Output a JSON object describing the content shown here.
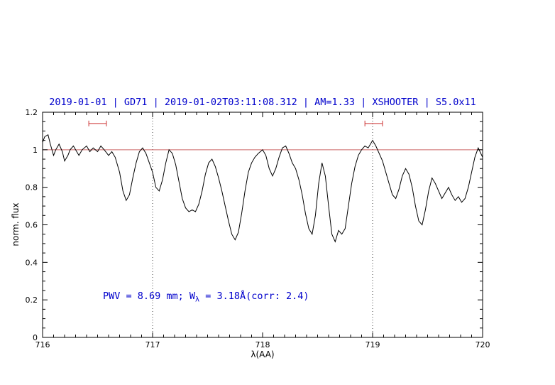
{
  "chart_data": {
    "type": "line",
    "title": "2019-01-01 | GD71 | 2019-01-02T03:11:08.312 | AM=1.33 | XSHOOTER | S5.0x11",
    "xlabel": "λ(AA)",
    "ylabel": "norm. flux",
    "xlim": [
      716,
      720
    ],
    "ylim": [
      0,
      1.2
    ],
    "x_ticks": [
      716,
      717,
      718,
      719,
      720
    ],
    "x_tick_labels": [
      "716",
      "717",
      "718",
      "719",
      "720"
    ],
    "y_ticks": [
      0,
      0.2,
      0.4,
      0.6,
      0.8,
      1,
      1.2
    ],
    "y_tick_labels": [
      "0",
      "0.2",
      "0.4",
      "0.6",
      "0.8",
      "1",
      "1.2"
    ],
    "x_minor_step": 0.1,
    "y_minor_step": 0.05,
    "grid": false,
    "legend": false,
    "colors": {
      "title_text": "#0000cc",
      "annotation_text": "#0000cc",
      "spectrum": "#000000",
      "reference_line": "#cc6666",
      "band_marker": "#cc3333",
      "dotted_guide": "#444444",
      "axis": "#000000"
    },
    "reference_line": {
      "y": 1.0,
      "color": "#cc6666"
    },
    "dotted_lines_x": [
      717,
      719
    ],
    "markers": [
      {
        "x1": 716.42,
        "x2": 716.58,
        "y": 1.14,
        "color": "#cc3333"
      },
      {
        "x1": 718.93,
        "x2": 719.09,
        "y": 1.14,
        "color": "#cc3333"
      }
    ],
    "annotation": {
      "prefix": "PWV = 8.69 mm; W",
      "sub": "λ",
      "suffix": " = 3.18Å(corr: 2.4)"
    },
    "series": [
      {
        "name": "normalized-spectrum",
        "color": "#000000",
        "points": [
          [
            716.0,
            1.04
          ],
          [
            716.02,
            1.07
          ],
          [
            716.05,
            1.08
          ],
          [
            716.07,
            1.03
          ],
          [
            716.1,
            0.97
          ],
          [
            716.12,
            1.0
          ],
          [
            716.15,
            1.03
          ],
          [
            716.18,
            0.99
          ],
          [
            716.2,
            0.94
          ],
          [
            716.23,
            0.97
          ],
          [
            716.25,
            1.0
          ],
          [
            716.28,
            1.02
          ],
          [
            716.3,
            1.0
          ],
          [
            716.33,
            0.97
          ],
          [
            716.36,
            1.0
          ],
          [
            716.4,
            1.02
          ],
          [
            716.43,
            0.99
          ],
          [
            716.46,
            1.01
          ],
          [
            716.5,
            0.99
          ],
          [
            716.53,
            1.02
          ],
          [
            716.56,
            1.0
          ],
          [
            716.6,
            0.97
          ],
          [
            716.63,
            0.99
          ],
          [
            716.66,
            0.96
          ],
          [
            716.7,
            0.88
          ],
          [
            716.73,
            0.78
          ],
          [
            716.76,
            0.73
          ],
          [
            716.79,
            0.76
          ],
          [
            716.82,
            0.85
          ],
          [
            716.85,
            0.93
          ],
          [
            716.88,
            0.99
          ],
          [
            716.91,
            1.01
          ],
          [
            716.94,
            0.98
          ],
          [
            716.97,
            0.93
          ],
          [
            717.0,
            0.88
          ],
          [
            717.03,
            0.8
          ],
          [
            717.06,
            0.78
          ],
          [
            717.09,
            0.84
          ],
          [
            717.12,
            0.93
          ],
          [
            717.15,
            1.0
          ],
          [
            717.18,
            0.98
          ],
          [
            717.21,
            0.92
          ],
          [
            717.24,
            0.83
          ],
          [
            717.27,
            0.74
          ],
          [
            717.3,
            0.69
          ],
          [
            717.33,
            0.67
          ],
          [
            717.36,
            0.68
          ],
          [
            717.39,
            0.67
          ],
          [
            717.42,
            0.71
          ],
          [
            717.45,
            0.78
          ],
          [
            717.48,
            0.87
          ],
          [
            717.51,
            0.93
          ],
          [
            717.54,
            0.95
          ],
          [
            717.57,
            0.91
          ],
          [
            717.6,
            0.85
          ],
          [
            717.63,
            0.78
          ],
          [
            717.66,
            0.7
          ],
          [
            717.69,
            0.62
          ],
          [
            717.72,
            0.55
          ],
          [
            717.75,
            0.52
          ],
          [
            717.78,
            0.56
          ],
          [
            717.81,
            0.66
          ],
          [
            717.84,
            0.78
          ],
          [
            717.87,
            0.88
          ],
          [
            717.9,
            0.93
          ],
          [
            717.93,
            0.96
          ],
          [
            717.96,
            0.98
          ],
          [
            718.0,
            1.0
          ],
          [
            718.03,
            0.97
          ],
          [
            718.06,
            0.9
          ],
          [
            718.09,
            0.86
          ],
          [
            718.12,
            0.9
          ],
          [
            718.15,
            0.96
          ],
          [
            718.18,
            1.01
          ],
          [
            718.21,
            1.02
          ],
          [
            718.24,
            0.98
          ],
          [
            718.27,
            0.93
          ],
          [
            718.3,
            0.9
          ],
          [
            718.33,
            0.84
          ],
          [
            718.36,
            0.76
          ],
          [
            718.39,
            0.66
          ],
          [
            718.42,
            0.58
          ],
          [
            718.45,
            0.55
          ],
          [
            718.48,
            0.65
          ],
          [
            718.51,
            0.82
          ],
          [
            718.54,
            0.93
          ],
          [
            718.57,
            0.86
          ],
          [
            718.6,
            0.7
          ],
          [
            718.63,
            0.55
          ],
          [
            718.66,
            0.51
          ],
          [
            718.69,
            0.57
          ],
          [
            718.72,
            0.55
          ],
          [
            718.75,
            0.58
          ],
          [
            718.78,
            0.7
          ],
          [
            718.81,
            0.82
          ],
          [
            718.84,
            0.91
          ],
          [
            718.87,
            0.97
          ],
          [
            718.9,
            1.0
          ],
          [
            718.93,
            1.02
          ],
          [
            718.96,
            1.01
          ],
          [
            719.0,
            1.05
          ],
          [
            719.03,
            1.02
          ],
          [
            719.06,
            0.98
          ],
          [
            719.09,
            0.94
          ],
          [
            719.12,
            0.88
          ],
          [
            719.15,
            0.82
          ],
          [
            719.18,
            0.76
          ],
          [
            719.21,
            0.74
          ],
          [
            719.24,
            0.79
          ],
          [
            719.27,
            0.86
          ],
          [
            719.3,
            0.9
          ],
          [
            719.33,
            0.87
          ],
          [
            719.36,
            0.8
          ],
          [
            719.39,
            0.7
          ],
          [
            719.42,
            0.62
          ],
          [
            719.45,
            0.6
          ],
          [
            719.48,
            0.68
          ],
          [
            719.51,
            0.78
          ],
          [
            719.54,
            0.85
          ],
          [
            719.57,
            0.82
          ],
          [
            719.6,
            0.78
          ],
          [
            719.63,
            0.74
          ],
          [
            719.66,
            0.77
          ],
          [
            719.69,
            0.8
          ],
          [
            719.72,
            0.76
          ],
          [
            719.75,
            0.73
          ],
          [
            719.78,
            0.75
          ],
          [
            719.81,
            0.72
          ],
          [
            719.84,
            0.74
          ],
          [
            719.87,
            0.8
          ],
          [
            719.9,
            0.88
          ],
          [
            719.93,
            0.96
          ],
          [
            719.96,
            1.01
          ],
          [
            720.0,
            0.96
          ]
        ]
      }
    ]
  }
}
